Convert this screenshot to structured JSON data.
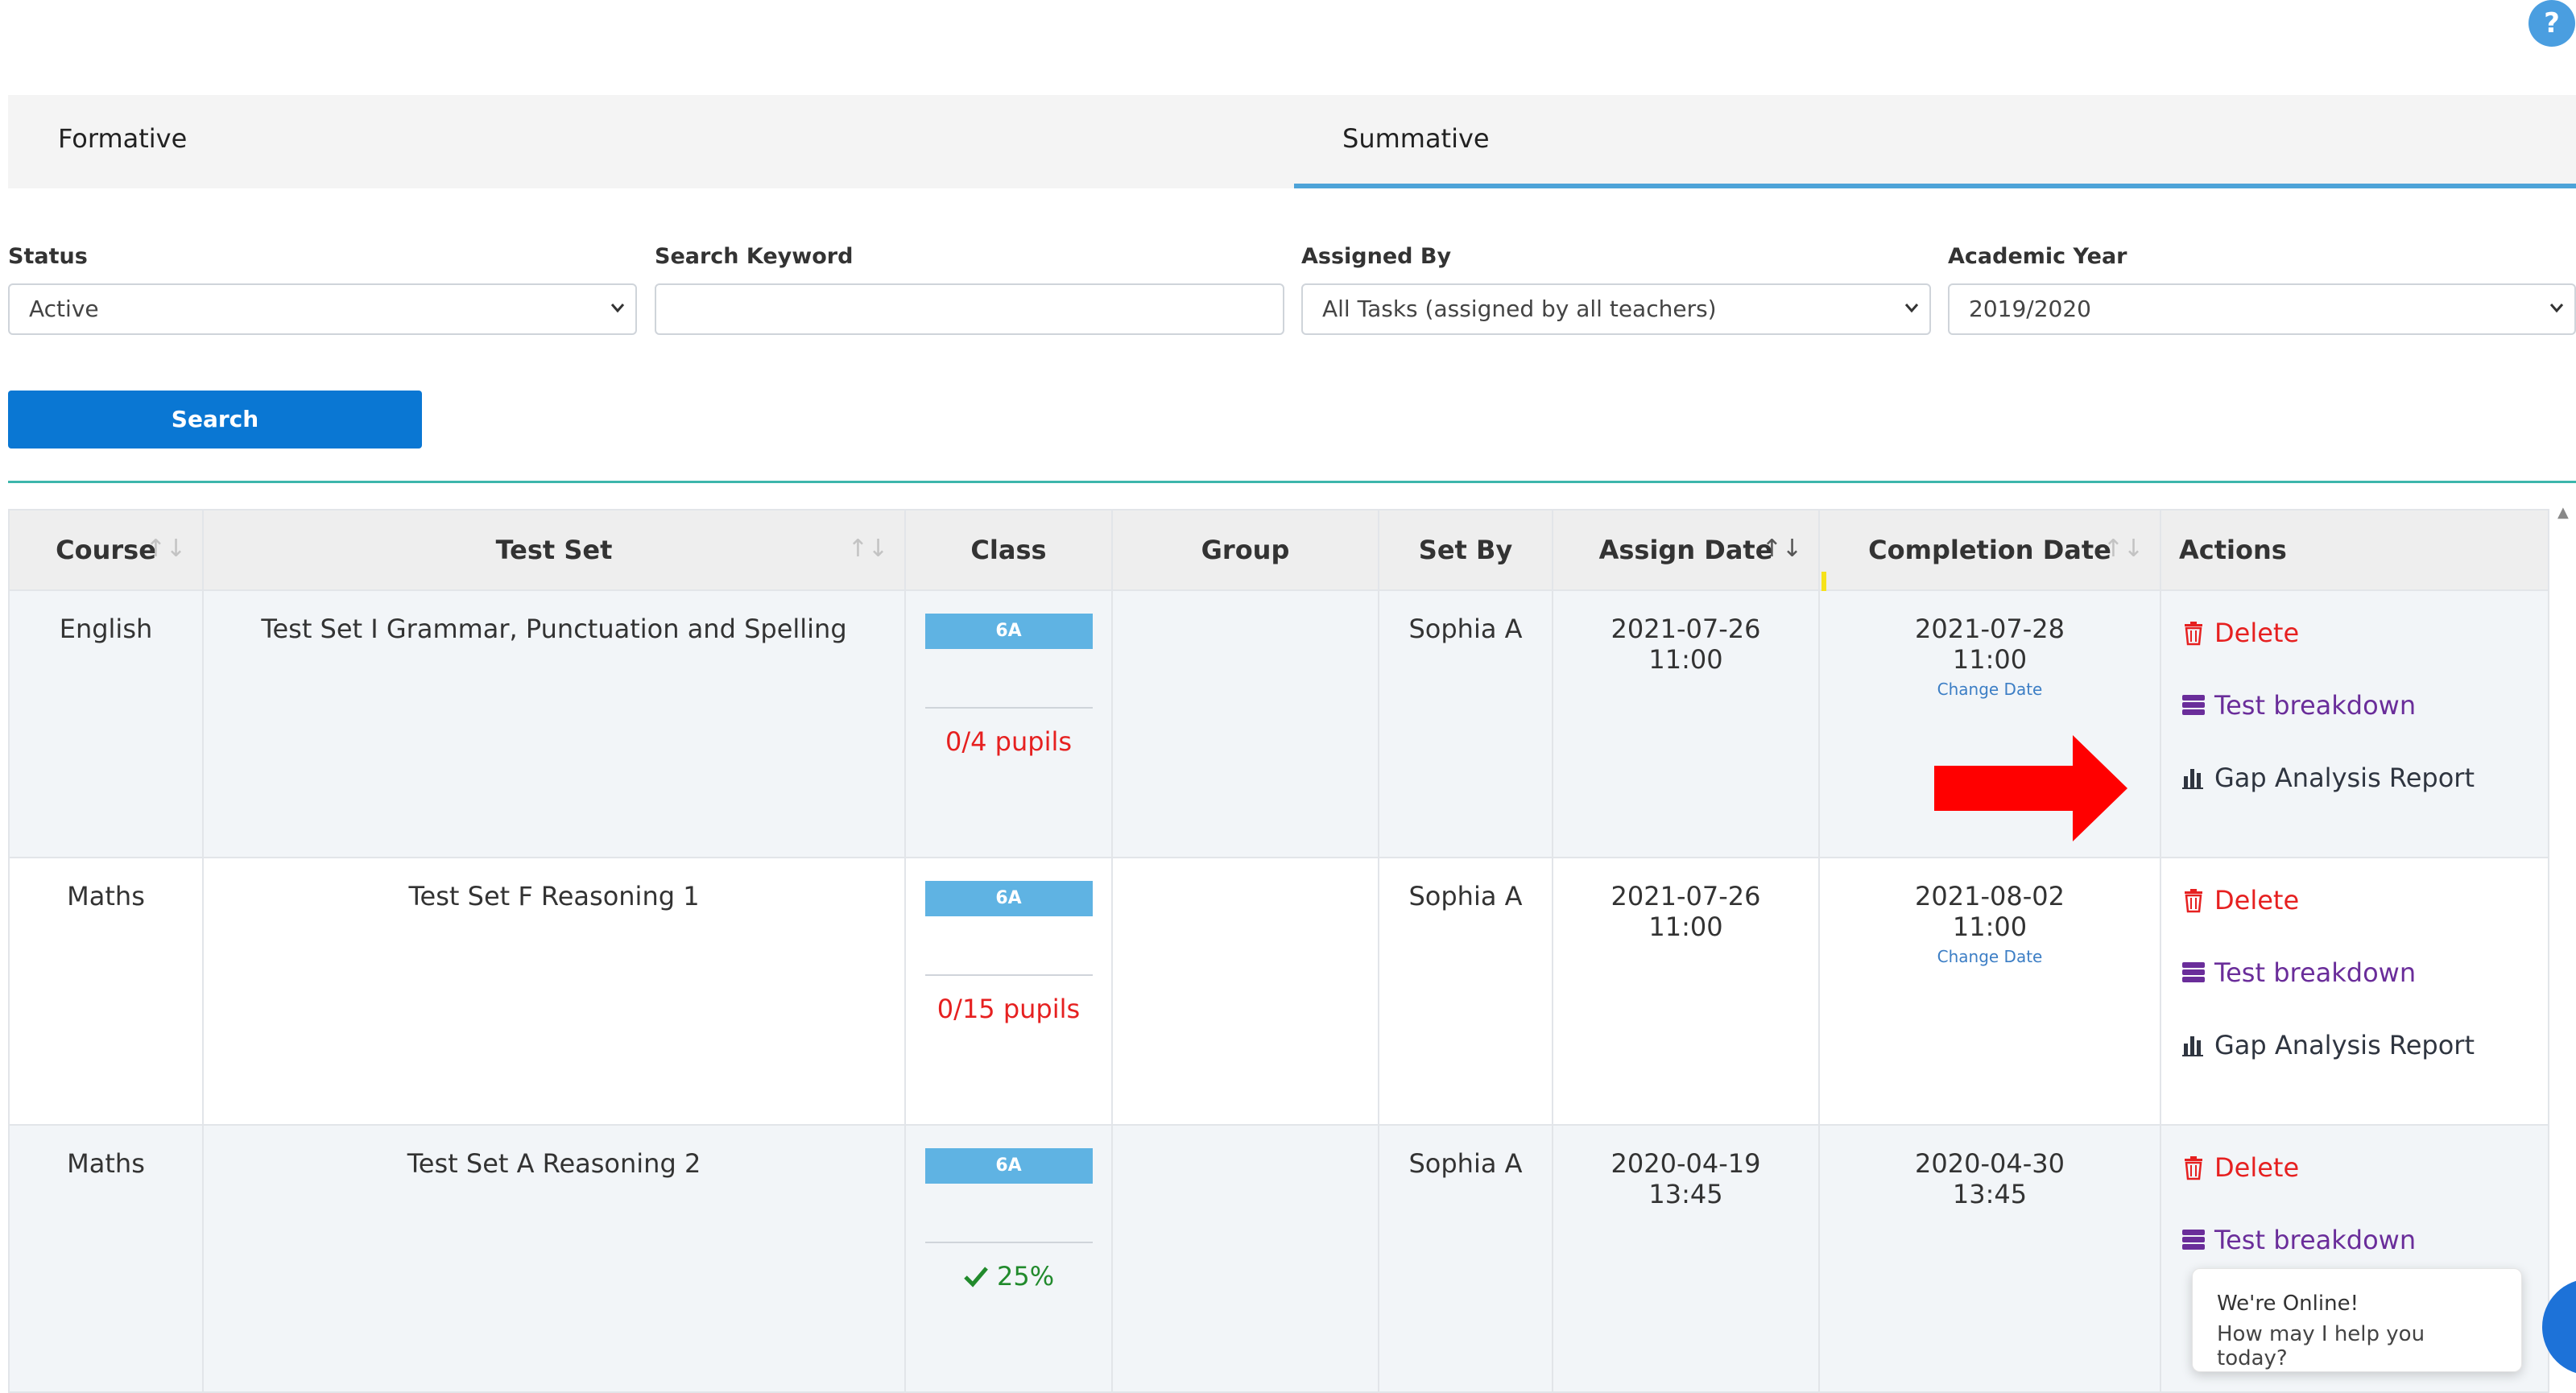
{
  "help": {
    "label": "?"
  },
  "tabs": [
    {
      "label": "Formative"
    },
    {
      "label": "Summative"
    }
  ],
  "filters": {
    "status": {
      "label": "Status",
      "value": "Active"
    },
    "keyword": {
      "label": "Search Keyword",
      "value": ""
    },
    "assigned_by": {
      "label": "Assigned By",
      "value": "All Tasks (assigned by all teachers)"
    },
    "academic_year": {
      "label": "Academic Year",
      "value": "2019/2020"
    }
  },
  "search_button": "Search",
  "table": {
    "headers": {
      "course": "Course",
      "test_set": "Test Set",
      "class": "Class",
      "group": "Group",
      "set_by": "Set By",
      "assign_date": "Assign Date",
      "completion_date": "Completion Date",
      "actions": "Actions"
    },
    "sort_icon": "↑↓",
    "rows": [
      {
        "course": "English",
        "test_set": "Test Set I Grammar, Punctuation and Spelling",
        "class": "6A",
        "progress": "0/4 pupils",
        "group": "",
        "set_by": "Sophia A",
        "assign_date": "2021-07-26",
        "assign_time": "11:00",
        "completion_date": "2021-07-28",
        "completion_time": "11:00",
        "change_date": "Change Date"
      },
      {
        "course": "Maths",
        "test_set": "Test Set F Reasoning 1",
        "class": "6A",
        "progress": "0/15 pupils",
        "group": "",
        "set_by": "Sophia A",
        "assign_date": "2021-07-26",
        "assign_time": "11:00",
        "completion_date": "2021-08-02",
        "completion_time": "11:00",
        "change_date": "Change Date"
      },
      {
        "course": "Maths",
        "test_set": "Test Set A Reasoning 2",
        "class": "6A",
        "progress": "25%",
        "group": "",
        "set_by": "Sophia A",
        "assign_date": "2020-04-19",
        "assign_time": "13:45",
        "completion_date": "2020-04-30",
        "completion_time": "13:45",
        "change_date": ""
      }
    ],
    "actions": {
      "delete": "Delete",
      "breakdown": "Test breakdown",
      "gap": "Gap Analysis Report"
    }
  },
  "chat": {
    "line1": "We're Online!",
    "line2": "How may I help you today?"
  },
  "colors": {
    "primary": "#0a77d3",
    "accent": "#4da3d8",
    "danger": "#e62020",
    "purple": "#6a2d9a",
    "success": "#218a2c",
    "teal": "#3db6ac"
  }
}
